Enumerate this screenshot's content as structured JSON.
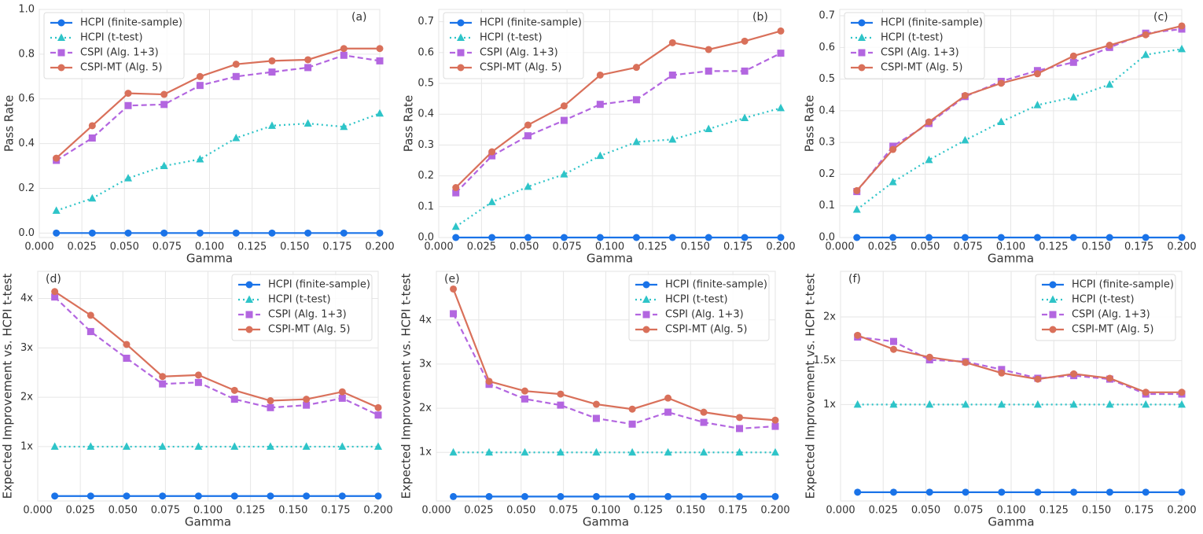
{
  "chart_data": [
    {
      "type": "line",
      "annotation": "(a)",
      "xlabel": "Gamma",
      "ylabel": "Pass Rate",
      "legend": "upper left",
      "grid": true,
      "x": [
        0.01,
        0.0311,
        0.0522,
        0.0733,
        0.0944,
        0.1156,
        0.1367,
        0.1578,
        0.1789,
        0.2
      ],
      "xlim": [
        0,
        0.2
      ],
      "xticks": [
        {
          "value": 0,
          "label": "0.000"
        },
        0.025,
        {
          "value": 0.05,
          "label": "0.050"
        },
        0.075,
        {
          "value": 0.1,
          "label": "0.100"
        },
        0.125,
        {
          "value": 0.15,
          "label": "0.150"
        },
        0.175,
        {
          "value": 0.2,
          "label": "0.200"
        }
      ],
      "ylim": [
        -0.02,
        1.0
      ],
      "yticks": [
        {
          "value": 0,
          "label": "0.0"
        },
        0.2,
        0.4,
        0.6,
        0.8,
        {
          "value": 1,
          "label": "1.0"
        }
      ],
      "series": [
        {
          "name": "HCPI (finite-sample)",
          "color": "#1a73e8",
          "marker": "circle",
          "dash": "solid",
          "values": [
            0,
            0,
            0,
            0,
            0,
            0,
            0,
            0,
            0,
            0
          ]
        },
        {
          "name": "HCPI (t-test)",
          "color": "#2ec4c8",
          "marker": "triangle",
          "dash": "dotted",
          "values": [
            0.1,
            0.155,
            0.245,
            0.3,
            0.33,
            0.425,
            0.48,
            0.49,
            0.475,
            0.535
          ]
        },
        {
          "name": "CSPI (Alg. 1+3)",
          "color": "#b366e0",
          "marker": "square",
          "dash": "dashed",
          "values": [
            0.325,
            0.425,
            0.57,
            0.575,
            0.66,
            0.7,
            0.72,
            0.74,
            0.795,
            0.77
          ]
        },
        {
          "name": "CSPI-MT (Alg. 5)",
          "color": "#d9705a",
          "marker": "circle",
          "dash": "solid",
          "values": [
            0.335,
            0.48,
            0.625,
            0.62,
            0.7,
            0.755,
            0.77,
            0.775,
            0.825,
            0.825
          ]
        }
      ]
    },
    {
      "type": "line",
      "annotation": "(b)",
      "xlabel": "Gamma",
      "ylabel": "Pass Rate",
      "legend": "upper left",
      "grid": true,
      "x": [
        0.01,
        0.0311,
        0.0522,
        0.0733,
        0.0944,
        0.1156,
        0.1367,
        0.1578,
        0.1789,
        0.2
      ],
      "xlim": [
        0,
        0.2
      ],
      "xticks": [
        {
          "value": 0,
          "label": "0.000"
        },
        0.025,
        {
          "value": 0.05,
          "label": "0.050"
        },
        0.075,
        {
          "value": 0.1,
          "label": "0.100"
        },
        0.125,
        {
          "value": 0.15,
          "label": "0.150"
        },
        0.175,
        {
          "value": 0.2,
          "label": "0.200"
        }
      ],
      "ylim": [
        0,
        0.74
      ],
      "yticks": [
        {
          "value": 0,
          "label": "0.0"
        },
        0.1,
        0.2,
        0.3,
        0.4,
        0.5,
        0.6,
        0.7
      ],
      "series": [
        {
          "name": "HCPI (finite-sample)",
          "color": "#1a73e8",
          "marker": "circle",
          "dash": "solid",
          "values": [
            0,
            0,
            0,
            0,
            0,
            0,
            0,
            0,
            0,
            0
          ]
        },
        {
          "name": "HCPI (t-test)",
          "color": "#2ec4c8",
          "marker": "triangle",
          "dash": "dotted",
          "values": [
            0.035,
            0.115,
            0.165,
            0.205,
            0.265,
            0.31,
            0.318,
            0.352,
            0.388,
            0.42
          ]
        },
        {
          "name": "CSPI (Alg. 1+3)",
          "color": "#b366e0",
          "marker": "square",
          "dash": "dashed",
          "values": [
            0.145,
            0.265,
            0.33,
            0.38,
            0.432,
            0.447,
            0.527,
            0.54,
            0.54,
            0.598
          ]
        },
        {
          "name": "CSPI-MT (Alg. 5)",
          "color": "#d9705a",
          "marker": "circle",
          "dash": "solid",
          "values": [
            0.162,
            0.278,
            0.365,
            0.427,
            0.527,
            0.552,
            0.632,
            0.61,
            0.637,
            0.67
          ]
        }
      ]
    },
    {
      "type": "line",
      "annotation": "(c)",
      "xlabel": "Gamma",
      "ylabel": "Pass Rate",
      "legend": "upper left",
      "grid": true,
      "x": [
        0.01,
        0.0311,
        0.0522,
        0.0733,
        0.0944,
        0.1156,
        0.1367,
        0.1578,
        0.1789,
        0.2
      ],
      "xlim": [
        0,
        0.2
      ],
      "xticks": [
        {
          "value": 0,
          "label": "0.000"
        },
        0.025,
        {
          "value": 0.05,
          "label": "0.050"
        },
        0.075,
        {
          "value": 0.1,
          "label": "0.100"
        },
        0.125,
        {
          "value": 0.15,
          "label": "0.150"
        },
        0.175,
        {
          "value": 0.2,
          "label": "0.200"
        }
      ],
      "ylim": [
        0,
        0.72
      ],
      "yticks": [
        {
          "value": 0,
          "label": "0.0"
        },
        0.1,
        0.2,
        0.3,
        0.4,
        0.5,
        0.6,
        0.7
      ],
      "series": [
        {
          "name": "HCPI (finite-sample)",
          "color": "#1a73e8",
          "marker": "circle",
          "dash": "solid",
          "values": [
            0,
            0,
            0,
            0,
            0,
            0,
            0,
            0,
            0,
            0
          ]
        },
        {
          "name": "HCPI (t-test)",
          "color": "#2ec4c8",
          "marker": "triangle",
          "dash": "dotted",
          "values": [
            0.088,
            0.175,
            0.245,
            0.307,
            0.365,
            0.418,
            0.443,
            0.483,
            0.577,
            0.595
          ]
        },
        {
          "name": "CSPI (Alg. 1+3)",
          "color": "#b366e0",
          "marker": "square",
          "dash": "dashed",
          "values": [
            0.145,
            0.288,
            0.36,
            0.445,
            0.493,
            0.527,
            0.553,
            0.6,
            0.645,
            0.658
          ]
        },
        {
          "name": "CSPI-MT (Alg. 5)",
          "color": "#d9705a",
          "marker": "circle",
          "dash": "solid",
          "values": [
            0.148,
            0.278,
            0.365,
            0.448,
            0.487,
            0.517,
            0.573,
            0.607,
            0.64,
            0.668
          ]
        }
      ]
    },
    {
      "type": "line",
      "annotation": "(d)",
      "xlabel": "Gamma",
      "ylabel": "Expected Improvement vs. HCPI t-test",
      "legend": "upper right",
      "grid": true,
      "x": [
        0.01,
        0.0311,
        0.0522,
        0.0733,
        0.0944,
        0.1156,
        0.1367,
        0.1578,
        0.1789,
        0.2
      ],
      "xlim": [
        0,
        0.2
      ],
      "xticks": [
        {
          "value": 0,
          "label": "0.000"
        },
        0.025,
        {
          "value": 0.05,
          "label": "0.050"
        },
        0.075,
        {
          "value": 0.1,
          "label": "0.100"
        },
        0.125,
        {
          "value": 0.15,
          "label": "0.150"
        },
        0.175,
        {
          "value": 0.2,
          "label": "0.200"
        }
      ],
      "ylim": [
        -0.1,
        4.55
      ],
      "yticks": [
        {
          "value": 1,
          "label": "1x"
        },
        {
          "value": 2,
          "label": "2x"
        },
        {
          "value": 3,
          "label": "3x"
        },
        {
          "value": 4,
          "label": "4x"
        }
      ],
      "series": [
        {
          "name": "HCPI (finite-sample)",
          "color": "#1a73e8",
          "marker": "circle",
          "dash": "solid",
          "values": [
            0,
            0,
            0,
            0,
            0,
            0,
            0,
            0,
            0,
            0
          ]
        },
        {
          "name": "HCPI (t-test)",
          "color": "#2ec4c8",
          "marker": "triangle",
          "dash": "dotted",
          "values": [
            1,
            1,
            1,
            1,
            1,
            1,
            1,
            1,
            1,
            1
          ]
        },
        {
          "name": "CSPI (Alg. 1+3)",
          "color": "#b366e0",
          "marker": "square",
          "dash": "dashed",
          "values": [
            4.03,
            3.33,
            2.79,
            2.27,
            2.3,
            1.96,
            1.79,
            1.84,
            1.98,
            1.64
          ]
        },
        {
          "name": "CSPI-MT (Alg. 5)",
          "color": "#d9705a",
          "marker": "circle",
          "dash": "solid",
          "values": [
            4.14,
            3.66,
            3.07,
            2.42,
            2.45,
            2.14,
            1.93,
            1.96,
            2.11,
            1.79
          ]
        }
      ]
    },
    {
      "type": "line",
      "annotation": "(e)",
      "xlabel": "Gamma",
      "ylabel": "Expected Improvement vs. HCPI t-test",
      "legend": "upper right",
      "grid": true,
      "x": [
        0.01,
        0.0311,
        0.0522,
        0.0733,
        0.0944,
        0.1156,
        0.1367,
        0.1578,
        0.1789,
        0.2
      ],
      "xlim": [
        0,
        0.2
      ],
      "xticks": [
        {
          "value": 0,
          "label": "0.000"
        },
        0.025,
        {
          "value": 0.05,
          "label": "0.050"
        },
        0.075,
        {
          "value": 0.1,
          "label": "0.100"
        },
        0.125,
        {
          "value": 0.15,
          "label": "0.150"
        },
        0.175,
        {
          "value": 0.2,
          "label": "0.200"
        }
      ],
      "ylim": [
        -0.1,
        5.1
      ],
      "yticks": [
        {
          "value": 1,
          "label": "1x"
        },
        {
          "value": 2,
          "label": "2x"
        },
        {
          "value": 3,
          "label": "3x"
        },
        {
          "value": 4,
          "label": "4x"
        }
      ],
      "series": [
        {
          "name": "HCPI (finite-sample)",
          "color": "#1a73e8",
          "marker": "circle",
          "dash": "solid",
          "values": [
            0,
            0,
            0,
            0,
            0,
            0,
            0,
            0,
            0,
            0
          ]
        },
        {
          "name": "HCPI (t-test)",
          "color": "#2ec4c8",
          "marker": "triangle",
          "dash": "dotted",
          "values": [
            1,
            1,
            1,
            1,
            1,
            1,
            1,
            1,
            1,
            1
          ]
        },
        {
          "name": "CSPI (Alg. 1+3)",
          "color": "#b366e0",
          "marker": "square",
          "dash": "dashed",
          "values": [
            4.14,
            2.54,
            2.21,
            2.07,
            1.77,
            1.64,
            1.91,
            1.68,
            1.54,
            1.59
          ]
        },
        {
          "name": "CSPI-MT (Alg. 5)",
          "color": "#d9705a",
          "marker": "circle",
          "dash": "solid",
          "values": [
            4.7,
            2.61,
            2.39,
            2.32,
            2.09,
            1.98,
            2.23,
            1.91,
            1.79,
            1.73
          ]
        }
      ]
    },
    {
      "type": "line",
      "annotation": "(f)",
      "xlabel": "Gamma",
      "ylabel": "Expected Improvement vs. HCPI t-test",
      "legend": "upper right",
      "grid": true,
      "x": [
        0.01,
        0.0311,
        0.0522,
        0.0733,
        0.0944,
        0.1156,
        0.1367,
        0.1578,
        0.1789,
        0.2
      ],
      "xlim": [
        0,
        0.2
      ],
      "xticks": [
        {
          "value": 0,
          "label": "0.000"
        },
        0.025,
        {
          "value": 0.05,
          "label": "0.050"
        },
        0.075,
        {
          "value": 0.1,
          "label": "0.100"
        },
        0.125,
        {
          "value": 0.15,
          "label": "0.150"
        },
        0.175,
        {
          "value": 0.2,
          "label": "0.200"
        }
      ],
      "ylim": [
        -0.1,
        2.52
      ],
      "yticks": [
        {
          "value": 1,
          "label": "1x"
        },
        {
          "value": 1.5,
          "label": "1.5x"
        },
        {
          "value": 2,
          "label": "2x"
        }
      ],
      "series": [
        {
          "name": "HCPI (finite-sample)",
          "color": "#1a73e8",
          "marker": "circle",
          "dash": "solid",
          "values": [
            0,
            0,
            0,
            0,
            0,
            0,
            0,
            0,
            0,
            0
          ]
        },
        {
          "name": "HCPI (t-test)",
          "color": "#2ec4c8",
          "marker": "triangle",
          "dash": "dotted",
          "values": [
            1,
            1,
            1,
            1,
            1,
            1,
            1,
            1,
            1,
            1
          ]
        },
        {
          "name": "CSPI (Alg. 1+3)",
          "color": "#b366e0",
          "marker": "square",
          "dash": "dashed",
          "values": [
            1.77,
            1.72,
            1.51,
            1.49,
            1.4,
            1.3,
            1.33,
            1.29,
            1.12,
            1.12
          ]
        },
        {
          "name": "CSPI-MT (Alg. 5)",
          "color": "#d9705a",
          "marker": "circle",
          "dash": "solid",
          "values": [
            1.79,
            1.63,
            1.54,
            1.48,
            1.36,
            1.29,
            1.35,
            1.3,
            1.14,
            1.14
          ]
        }
      ]
    }
  ]
}
